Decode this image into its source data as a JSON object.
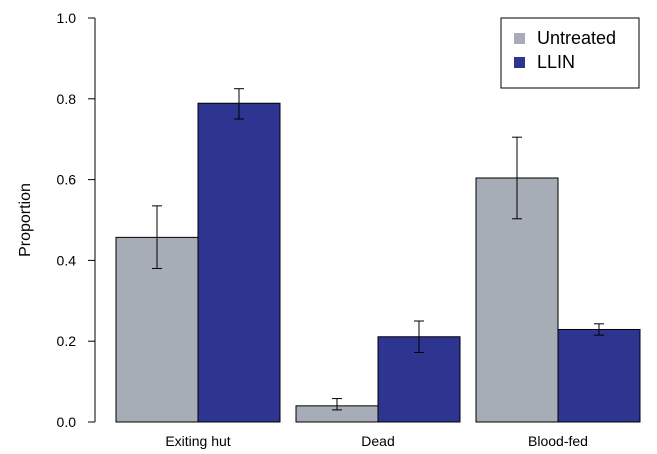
{
  "chart_data": {
    "type": "bar",
    "title": "",
    "xlabel": "",
    "ylabel": "Proportion",
    "ylim": [
      0,
      1
    ],
    "yticks": [
      "0.0",
      "0.2",
      "0.4",
      "0.6",
      "0.8",
      "1.0"
    ],
    "categories": [
      "Exiting hut",
      "Dead",
      "Blood-fed"
    ],
    "series": [
      {
        "name": "Untreated",
        "color": "#a7adb6",
        "values": [
          0.457,
          0.04,
          0.604
        ],
        "error_low": [
          0.38,
          0.03,
          0.503
        ],
        "error_high": [
          0.535,
          0.058,
          0.705
        ]
      },
      {
        "name": "LLIN",
        "color": "#2e3590",
        "values": [
          0.789,
          0.211,
          0.229
        ],
        "error_low": [
          0.75,
          0.172,
          0.215
        ],
        "error_high": [
          0.825,
          0.25,
          0.243
        ]
      }
    ],
    "legend": {
      "position": "top-right",
      "entries": [
        "Untreated",
        "LLIN"
      ]
    },
    "grid": false
  }
}
